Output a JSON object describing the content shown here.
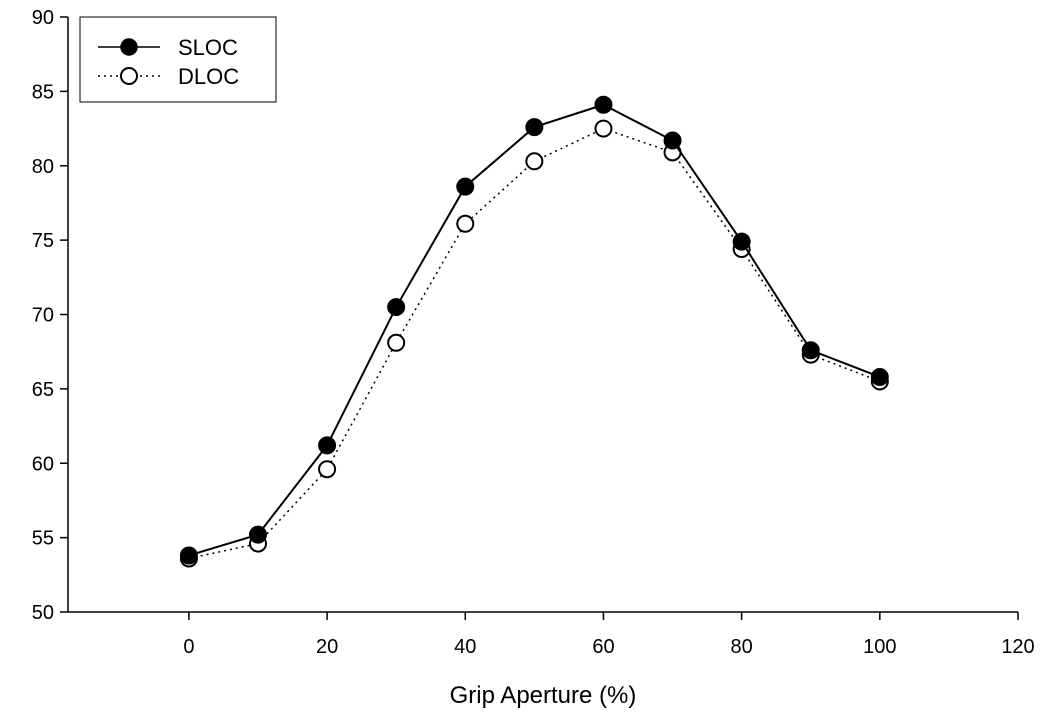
{
  "chart_data": {
    "type": "line",
    "title": "",
    "xlabel": "Grip Aperture (%)",
    "ylabel": "",
    "xlim": [
      -17.5,
      120
    ],
    "ylim": [
      50,
      90
    ],
    "x_ticks": [
      0,
      20,
      40,
      60,
      80,
      100,
      120
    ],
    "y_ticks": [
      50,
      55,
      60,
      65,
      70,
      75,
      80,
      85,
      90
    ],
    "grid": false,
    "legend_position": "top-left",
    "x": [
      0,
      10,
      20,
      30,
      40,
      50,
      60,
      70,
      80,
      90,
      100
    ],
    "series": [
      {
        "name": "SLOC",
        "marker": "filled-circle",
        "line": "solid",
        "values": [
          53.8,
          55.2,
          61.2,
          70.5,
          78.6,
          82.6,
          84.1,
          81.7,
          74.9,
          67.6,
          65.8
        ]
      },
      {
        "name": "DLOC",
        "marker": "open-circle",
        "line": "dotted",
        "values": [
          53.6,
          54.6,
          59.6,
          68.1,
          76.1,
          80.3,
          82.5,
          80.9,
          74.4,
          67.3,
          65.5
        ]
      }
    ]
  }
}
